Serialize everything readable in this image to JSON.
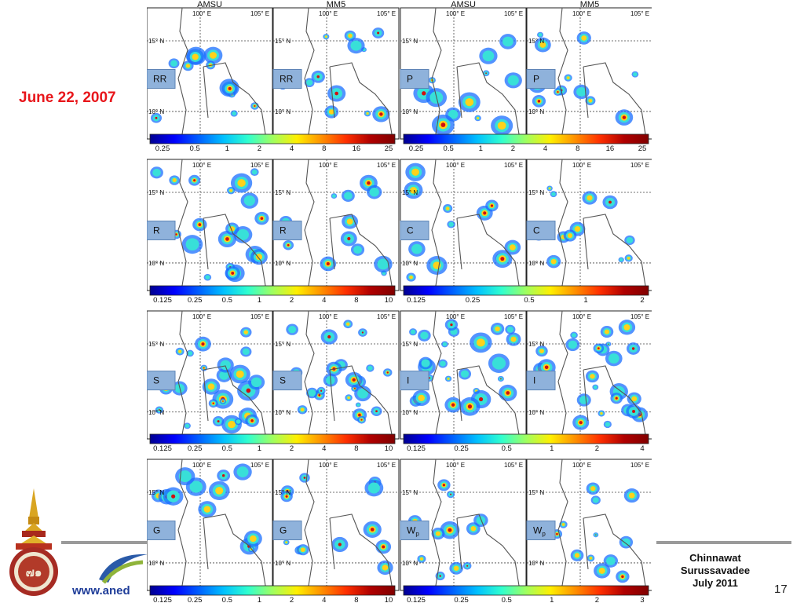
{
  "slide": {
    "date": "June 22, 2007",
    "url": "www.aned",
    "banner_fragment": "t",
    "author": [
      "Chinnawat",
      "Surussavadee",
      "July 2011"
    ],
    "page_number": "17",
    "colors": {
      "date": "#e8161b",
      "url": "#1f3d99",
      "rule": "#9a9a9a",
      "tag_fill": "#8fb2db",
      "tag_border": "#5d84b5"
    }
  },
  "figure": {
    "column_titles": [
      "AMSU",
      "MM5",
      "AMSU",
      "MM5"
    ],
    "lon_labels": [
      "100° E",
      "105° E"
    ],
    "lat_labels": [
      "15° N",
      "10° N"
    ],
    "rows": [
      {
        "tags": [
          "RR",
          "RR",
          "P",
          "P"
        ],
        "colorbar_left": [
          "0.25",
          "0.5",
          "1",
          "2",
          "4",
          "8",
          "16",
          "25"
        ],
        "colorbar_right": [
          "0.25",
          "0.5",
          "1",
          "2",
          "4",
          "8",
          "16",
          "25"
        ]
      },
      {
        "tags": [
          "R",
          "R",
          "C",
          "C"
        ],
        "colorbar_left": [
          "0.125",
          "0.25",
          "0.5",
          "1",
          "2",
          "4",
          "8",
          "10"
        ],
        "colorbar_right": [
          "0.125",
          "0.25",
          "0.5",
          "1",
          "2"
        ]
      },
      {
        "tags": [
          "S",
          "S",
          "I",
          "I"
        ],
        "colorbar_left": [
          "0.125",
          "0.25",
          "0.5",
          "1",
          "2",
          "4",
          "8",
          "10"
        ],
        "colorbar_right": [
          "0.125",
          "0.25",
          "0.5",
          "1",
          "2",
          "4"
        ]
      },
      {
        "tags": [
          "G",
          "G",
          "Wp",
          "Wp"
        ],
        "colorbar_left": [
          "0.125",
          "0.25",
          "0.5",
          "1",
          "2",
          "4",
          "8",
          "10"
        ],
        "colorbar_right": [
          "0.125",
          "0.25",
          "0.5",
          "1",
          "2",
          "3"
        ]
      }
    ]
  }
}
